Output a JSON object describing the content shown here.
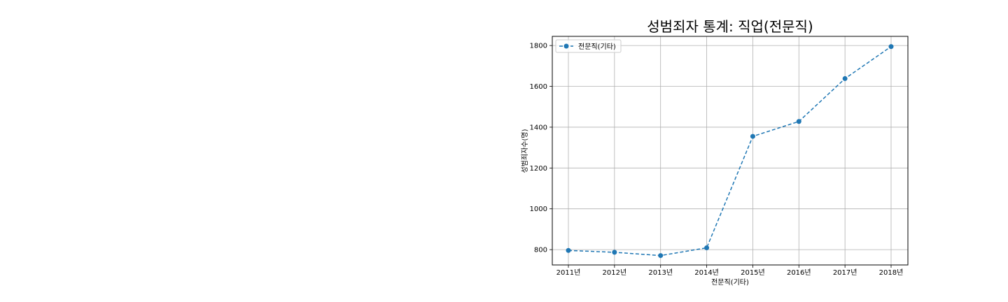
{
  "chart_data": {
    "type": "line",
    "title": "성범죄자 통계: 직업(전문직)",
    "xlabel": "전문직(기타)",
    "ylabel": "성범죄자수(명)",
    "categories": [
      "2011년",
      "2012년",
      "2013년",
      "2014년",
      "2015년",
      "2016년",
      "2017년",
      "2018년"
    ],
    "series": [
      {
        "name": "전문직(기타)",
        "values": [
          796,
          787,
          771,
          809,
          1355,
          1428,
          1638,
          1795
        ],
        "color": "#1f77b4",
        "line_style": "dashed",
        "marker": "circle"
      }
    ],
    "ylim": [
      725,
      1845
    ],
    "yticks": [
      800,
      1000,
      1200,
      1400,
      1600,
      1800
    ],
    "grid": true,
    "legend_position": "top-left"
  }
}
